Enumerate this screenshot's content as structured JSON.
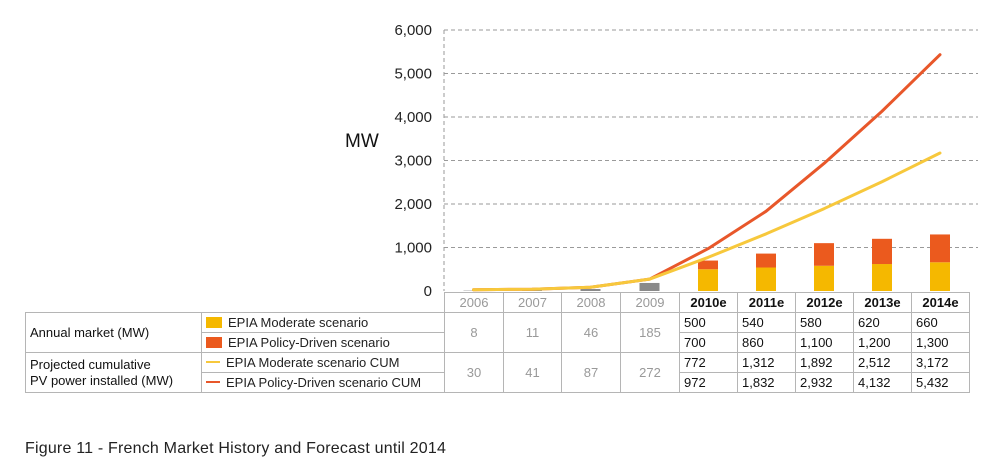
{
  "chart_data": {
    "type": "bar+line",
    "ylabel": "MW",
    "ylim": [
      0,
      6000
    ],
    "yticks": [
      "0",
      "1,000",
      "2,000",
      "3,000",
      "4,000",
      "5,000",
      "6,000"
    ],
    "categories": [
      "2006",
      "2007",
      "2008",
      "2009",
      "2010e",
      "2011e",
      "2012e",
      "2013e",
      "2014e"
    ],
    "historical_annual": [
      8,
      11,
      46,
      185
    ],
    "historical_cumulative": [
      30,
      41,
      87,
      272
    ],
    "series": [
      {
        "name": "EPIA Moderate scenario",
        "kind": "bar",
        "color": "#f5b800",
        "values": [
          null,
          null,
          null,
          null,
          500,
          540,
          580,
          620,
          660
        ]
      },
      {
        "name": "EPIA Policy-Driven scenario",
        "kind": "bar",
        "color": "#eb5a1e",
        "values": [
          null,
          null,
          null,
          null,
          700,
          860,
          1100,
          1200,
          1300
        ]
      },
      {
        "name": "EPIA Moderate scenario CUM",
        "kind": "line",
        "color": "#f7c83c",
        "values": [
          30,
          41,
          87,
          272,
          772,
          1312,
          1892,
          2512,
          3172
        ]
      },
      {
        "name": "EPIA Policy-Driven scenario CUM",
        "kind": "line",
        "color": "#e8572a",
        "values": [
          30,
          41,
          87,
          272,
          972,
          1832,
          2932,
          4132,
          5432
        ]
      }
    ],
    "grid": "dashed horizontal",
    "historical_bar_color": "#8a8a8a"
  },
  "table": {
    "group1": "Annual market (MW)",
    "group2_line1": "Projected cumulative",
    "group2_line2": "PV power installed (MW)",
    "hist_annual": [
      "8",
      "11",
      "46",
      "185"
    ],
    "hist_cum": [
      "30",
      "41",
      "87",
      "272"
    ],
    "moderate_annual": [
      "500",
      "540",
      "580",
      "620",
      "660"
    ],
    "policy_annual": [
      "700",
      "860",
      "1,100",
      "1,200",
      "1,300"
    ],
    "moderate_cum": [
      "772",
      "1,312",
      "1,892",
      "2,512",
      "3,172"
    ],
    "policy_cum": [
      "972",
      "1,832",
      "2,932",
      "4,132",
      "5,432"
    ]
  },
  "caption": "Figure 11 - French Market History and Forecast until 2014"
}
